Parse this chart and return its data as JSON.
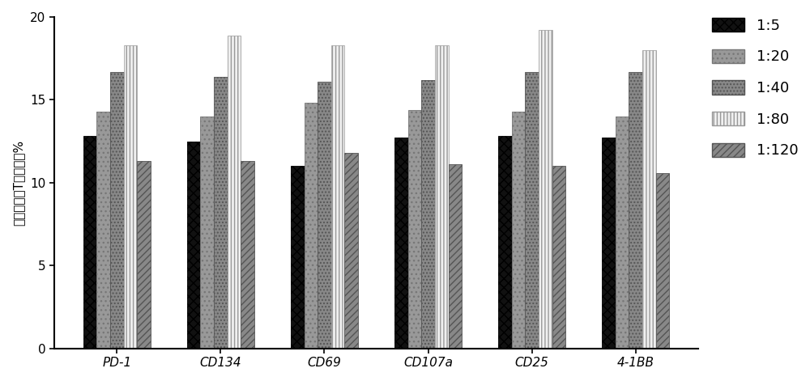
{
  "categories": [
    "PD-1",
    "CD134",
    "CD69",
    "CD107a",
    "CD25",
    "4-1BB"
  ],
  "series": {
    "1:5": [
      12.8,
      12.5,
      11.0,
      12.7,
      12.8,
      12.7
    ],
    "1:20": [
      14.3,
      14.0,
      14.8,
      14.4,
      14.3,
      14.0
    ],
    "1:40": [
      16.7,
      16.4,
      16.1,
      16.2,
      16.7,
      16.7
    ],
    "1:80": [
      18.3,
      18.9,
      18.3,
      18.3,
      19.2,
      18.0
    ],
    "1:120": [
      11.3,
      11.3,
      11.8,
      11.1,
      11.0,
      10.6
    ]
  },
  "ylabel": "抗原特异性T细胞占比%",
  "ylim": [
    0,
    20
  ],
  "yticks": [
    0,
    5,
    10,
    15,
    20
  ],
  "legend_labels": [
    "1:5",
    "1:20",
    "1:40",
    "1:80",
    "1:120"
  ],
  "bar_width": 0.13,
  "figure_width": 10.0,
  "figure_height": 4.71,
  "background_color": "#ffffff",
  "styles": {
    "1:5": {
      "fc": "#111111",
      "ec": "#000000",
      "hatch": "xxx",
      "lw": 0.6
    },
    "1:20": {
      "fc": "#999999",
      "ec": "#777777",
      "hatch": "...",
      "lw": 0.6
    },
    "1:40": {
      "fc": "#888888",
      "ec": "#555555",
      "hatch": "....",
      "lw": 0.6
    },
    "1:80": {
      "fc": "#f0f0f0",
      "ec": "#999999",
      "hatch": "||||",
      "lw": 0.5
    },
    "1:120": {
      "fc": "#888888",
      "ec": "#555555",
      "hatch": "////",
      "lw": 0.6
    }
  }
}
